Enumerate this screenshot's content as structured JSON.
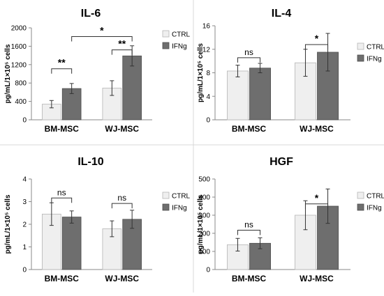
{
  "chart_data": [
    {
      "type": "bar",
      "title": "IL-6",
      "ylabel": "pg/mL/1×10⁵ cells",
      "ylim": [
        0,
        2000
      ],
      "yticks": [
        "0",
        "400",
        "800",
        "1200",
        "1600",
        "2000"
      ],
      "ytick_values": [
        0,
        400,
        800,
        1200,
        1600,
        2000
      ],
      "categories": [
        "BM-MSC",
        "WJ-MSC"
      ],
      "series": [
        {
          "name": "CTRL",
          "values": [
            340,
            690
          ],
          "errors": [
            80,
            160
          ]
        },
        {
          "name": "IFNg",
          "values": [
            680,
            1390
          ],
          "errors": [
            110,
            220
          ]
        }
      ],
      "annotations": [
        {
          "label": "**",
          "between": "BM-MSC CTRL vs IFNg"
        },
        {
          "label": "**",
          "between": "WJ-MSC CTRL vs IFNg"
        },
        {
          "label": "*",
          "between": "BM-MSC IFNg vs WJ-MSC IFNg"
        }
      ],
      "legend": "right",
      "grid": false
    },
    {
      "type": "bar",
      "title": "IL-4",
      "ylabel": "pg/mL/1×10⁵ cells",
      "ylim": [
        0,
        16
      ],
      "yticks": [
        "0",
        "4",
        "8",
        "12",
        "16"
      ],
      "ytick_values": [
        0,
        4,
        8,
        12,
        16
      ],
      "categories": [
        "BM-MSC",
        "WJ-MSC"
      ],
      "series": [
        {
          "name": "CTRL",
          "values": [
            8.3,
            9.7
          ],
          "errors": [
            1.0,
            2.3
          ]
        },
        {
          "name": "IFNg",
          "values": [
            8.8,
            11.5
          ],
          "errors": [
            0.8,
            3.2
          ]
        }
      ],
      "annotations": [
        {
          "label": "ns",
          "between": "BM-MSC CTRL vs IFNg"
        },
        {
          "label": "*",
          "between": "WJ-MSC CTRL vs IFNg"
        }
      ],
      "legend": "right",
      "grid": false
    },
    {
      "type": "bar",
      "title": "IL-10",
      "ylabel": "pg/mL/1×10⁵ cells",
      "ylim": [
        0,
        4
      ],
      "yticks": [
        "0",
        "1",
        "2",
        "3",
        "4"
      ],
      "ytick_values": [
        0,
        1,
        2,
        3,
        4
      ],
      "categories": [
        "BM-MSC",
        "WJ-MSC"
      ],
      "series": [
        {
          "name": "CTRL",
          "values": [
            2.45,
            1.8
          ],
          "errors": [
            0.5,
            0.35
          ]
        },
        {
          "name": "IFNg",
          "values": [
            2.32,
            2.22
          ],
          "errors": [
            0.27,
            0.4
          ]
        }
      ],
      "annotations": [
        {
          "label": "ns",
          "between": "BM-MSC CTRL vs IFNg"
        },
        {
          "label": "ns",
          "between": "WJ-MSC CTRL vs IFNg"
        }
      ],
      "legend": "right",
      "grid": false
    },
    {
      "type": "bar",
      "title": "HGF",
      "ylabel": "pg/mL/1×10⁵ cells",
      "ylim": [
        0,
        500
      ],
      "yticks": [
        "0",
        "100",
        "200",
        "300",
        "400",
        "500"
      ],
      "ytick_values": [
        0,
        100,
        200,
        300,
        400,
        500
      ],
      "categories": [
        "BM-MSC",
        "WJ-MSC"
      ],
      "series": [
        {
          "name": "CTRL",
          "values": [
            137,
            300
          ],
          "errors": [
            35,
            80
          ]
        },
        {
          "name": "IFNg",
          "values": [
            145,
            350
          ],
          "errors": [
            30,
            95
          ]
        }
      ],
      "annotations": [
        {
          "label": "ns",
          "between": "BM-MSC CTRL vs IFNg"
        },
        {
          "label": "*",
          "between": "WJ-MSC CTRL vs IFNg"
        }
      ],
      "legend": "right",
      "grid": false
    }
  ],
  "colors": {
    "ctrl_fill": "#efefef",
    "ifng_fill": "#6e6e6e",
    "axis": "#8a8a8a",
    "divider": "#d9d9d9"
  }
}
